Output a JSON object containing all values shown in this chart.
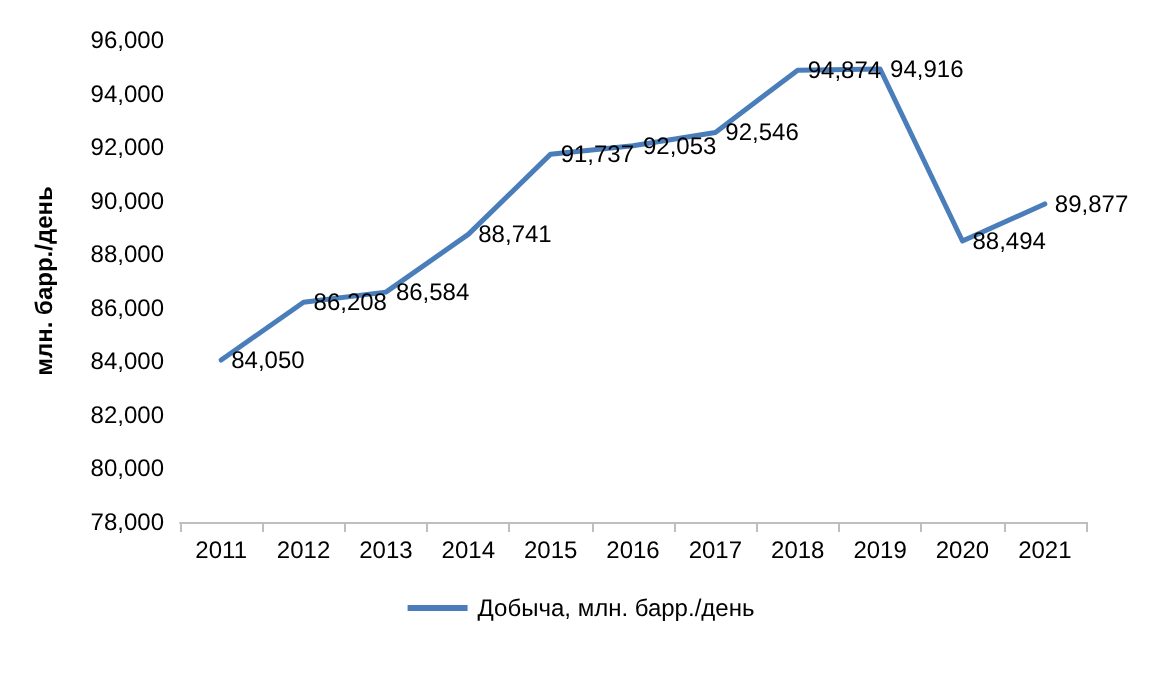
{
  "chart_data": {
    "type": "line",
    "ylabel": "млн. барр./день",
    "categories": [
      "2011",
      "2012",
      "2013",
      "2014",
      "2015",
      "2016",
      "2017",
      "2018",
      "2019",
      "2020",
      "2021"
    ],
    "series": [
      {
        "name": "Добыча, млн. барр./день",
        "color": "#4a7ebb",
        "values": [
          84050,
          86208,
          86584,
          88741,
          91737,
          92053,
          92546,
          94874,
          94916,
          88494,
          89877
        ],
        "value_labels": [
          "84,050",
          "86,208",
          "86,584",
          "88,741",
          "91,737",
          "92,053",
          "92,546",
          "94,874",
          "94,916",
          "88,494",
          "89,877"
        ]
      }
    ],
    "ylim": [
      78000,
      96000
    ],
    "yticks": [
      {
        "value": 78000,
        "label": "78,000"
      },
      {
        "value": 80000,
        "label": "80,000"
      },
      {
        "value": 82000,
        "label": "82,000"
      },
      {
        "value": 84000,
        "label": "84,000"
      },
      {
        "value": 86000,
        "label": "86,000"
      },
      {
        "value": 88000,
        "label": "88,000"
      },
      {
        "value": 90000,
        "label": "90,000"
      },
      {
        "value": 92000,
        "label": "92,000"
      },
      {
        "value": 94000,
        "label": "94,000"
      },
      {
        "value": 96000,
        "label": "96,000"
      }
    ],
    "legend": "bottom",
    "grid": false,
    "marker": "none",
    "line_style": "solid"
  }
}
